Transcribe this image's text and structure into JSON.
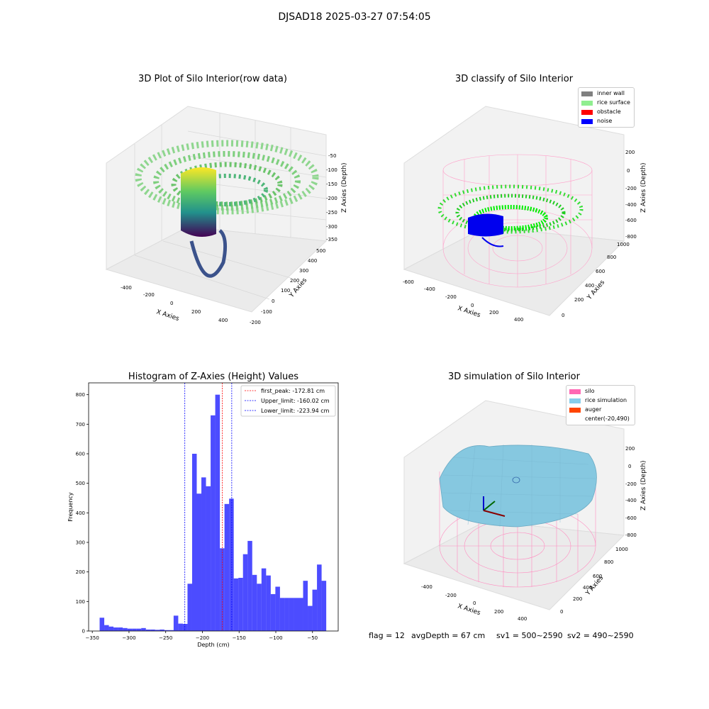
{
  "suptitle": "DJSAD18 2025-03-27 07:54:05",
  "panels": {
    "raw": {
      "title": "3D Plot of Silo Interior(row data)",
      "xlabel": "X Axies",
      "ylabel": "Y Axies",
      "zlabel": "Z Axies (Depth)",
      "xticks": [
        "-400",
        "-200",
        "0",
        "200",
        "400"
      ],
      "yticks": [
        "-200",
        "-100",
        "0",
        "100",
        "200",
        "300",
        "400",
        "500"
      ],
      "zticks": [
        "-50",
        "-100",
        "-150",
        "-200",
        "-250",
        "-300",
        "-350"
      ]
    },
    "classify": {
      "title": "3D classify of Silo Interior",
      "xlabel": "X Axies",
      "ylabel": "Y Axies",
      "zlabel": "Z Axies (Depth)",
      "xticks": [
        "-600",
        "-400",
        "-200",
        "0",
        "200",
        "400"
      ],
      "yticks": [
        "0",
        "200",
        "400",
        "600",
        "800",
        "1000"
      ],
      "zticks": [
        "200",
        "0",
        "-200",
        "-400",
        "-600",
        "-800"
      ],
      "legend": [
        {
          "label": "inner wall",
          "color": "#808080"
        },
        {
          "label": "rice surface",
          "color": "#90ee90"
        },
        {
          "label": "obstacle",
          "color": "#ff0000"
        },
        {
          "label": "noise",
          "color": "#0000ff"
        }
      ]
    },
    "simulation": {
      "title": "3D simulation of Silo Interior",
      "xlabel": "X Axies",
      "ylabel": "Y Axies",
      "zlabel": "Z Axies (Depth)",
      "xticks": [
        "-400",
        "-200",
        "0",
        "200",
        "400"
      ],
      "yticks": [
        "0",
        "200",
        "400",
        "600",
        "800",
        "1000"
      ],
      "zticks": [
        "200",
        "0",
        "-200",
        "-400",
        "-600",
        "-800"
      ],
      "legend": [
        {
          "label": "silo",
          "color": "#ff69b4"
        },
        {
          "label": "rice simulation",
          "color": "#87ceeb"
        },
        {
          "label": "auger",
          "color": "#ff4500"
        },
        {
          "label": "center(-20,490)",
          "color": ""
        }
      ]
    }
  },
  "status": {
    "flag": "flag = 12",
    "avg_depth": "avgDepth = 67 cm",
    "sv1": "sv1 = 500~2590",
    "sv2": "sv2 = 490~2590"
  },
  "colors": {
    "hist": "#0000ff",
    "peak_line": "#ff0000",
    "limit_line": "#0000ff"
  },
  "chart_data": {
    "type": "bar",
    "title": "Histogram of Z-Axies (Height) Values",
    "xlabel": "Depth (cm)",
    "ylabel": "Frequency",
    "xlim": [
      -355,
      -15
    ],
    "ylim": [
      0,
      840
    ],
    "xticks": [
      -350,
      -300,
      -250,
      -200,
      -150,
      -100,
      -50
    ],
    "yticks": [
      0,
      100,
      200,
      300,
      400,
      500,
      600,
      700,
      800
    ],
    "bin_width": 6.3,
    "bin_start": -340,
    "values": [
      45,
      20,
      15,
      12,
      12,
      10,
      8,
      8,
      8,
      10,
      5,
      5,
      4,
      5,
      3,
      3,
      52,
      25,
      24,
      160,
      600,
      465,
      520,
      490,
      730,
      800,
      280,
      430,
      448,
      178,
      180,
      260,
      305,
      190,
      160,
      212,
      188,
      125,
      150,
      112,
      112,
      112,
      112,
      112,
      170,
      85,
      140,
      225,
      170
    ],
    "vlines": [
      {
        "label": "first_peak: -172.81 cm",
        "x": -172.81,
        "color": "#ff0000"
      },
      {
        "label": "Upper_limit: -160.02 cm",
        "x": -160.02,
        "color": "#0000ff"
      },
      {
        "label": "Lower_limit: -223.94 cm",
        "x": -223.94,
        "color": "#0000ff"
      }
    ],
    "legend_position": "top-right"
  }
}
